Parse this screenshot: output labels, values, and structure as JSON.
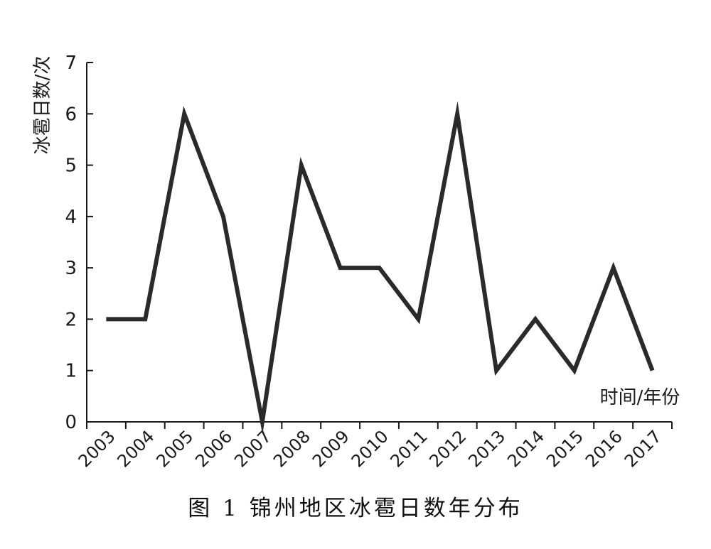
{
  "chart_data": {
    "type": "line",
    "categories": [
      "2003",
      "2004",
      "2005",
      "2006",
      "2007",
      "2008",
      "2009",
      "2010",
      "2011",
      "2012",
      "2013",
      "2014",
      "2015",
      "2016",
      "2017"
    ],
    "series": [
      {
        "values": [
          2,
          2,
          6,
          4,
          0,
          5,
          3,
          3,
          2,
          6,
          1,
          2,
          1,
          3,
          1
        ]
      }
    ],
    "title": "图 1 锦州地区冰雹日数年分布",
    "xlabel": "时间/年份",
    "ylabel": "冰雹日数/次",
    "ylim": [
      0,
      7
    ],
    "yticks": [
      "0",
      "1",
      "2",
      "3",
      "4",
      "5",
      "6",
      "7"
    ],
    "grid": false,
    "line_color": "#2a2a2a"
  }
}
